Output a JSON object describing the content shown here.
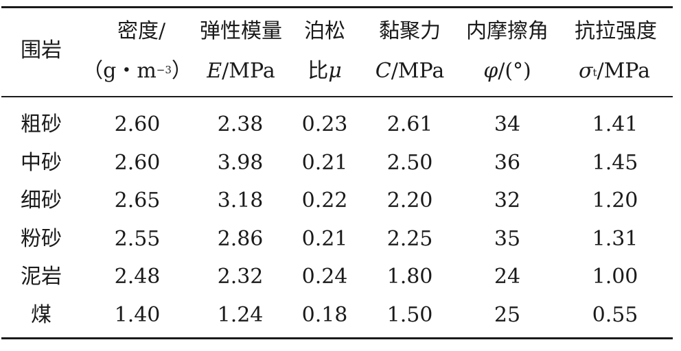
{
  "table": {
    "headers": [
      {
        "key": "rock",
        "line1": "围岩"
      },
      {
        "key": "density",
        "line1": "密度/",
        "line2_pre": "（g・m",
        "line2_sup": "−3",
        "line2_post": "）"
      },
      {
        "key": "elastic",
        "line1": "弹性模量",
        "line2_italic": "E",
        "line2_rest": "/MPa"
      },
      {
        "key": "poisson",
        "line1": "泊松",
        "line2_plain": "比",
        "line2_italic": "μ"
      },
      {
        "key": "cohesion",
        "line1": "黏聚力",
        "line2_italic": "C",
        "line2_rest": "/MPa"
      },
      {
        "key": "friction",
        "line1": "内摩擦角",
        "line2_italic": "φ",
        "line2_rest": "/(°)"
      },
      {
        "key": "tensile",
        "line1": "抗拉强度",
        "line2_italic": "σ",
        "line2_sub": "t",
        "line2_rest": "/MPa"
      }
    ],
    "rows": [
      [
        "粗砂",
        "2.60",
        "2.38",
        "0.23",
        "2.61",
        "34",
        "1.41"
      ],
      [
        "中砂",
        "2.60",
        "3.98",
        "0.21",
        "2.50",
        "36",
        "1.45"
      ],
      [
        "细砂",
        "2.65",
        "3.18",
        "0.22",
        "2.20",
        "32",
        "1.20"
      ],
      [
        "粉砂",
        "2.55",
        "2.86",
        "0.21",
        "2.25",
        "35",
        "1.31"
      ],
      [
        "泥岩",
        "2.48",
        "2.32",
        "0.24",
        "1.80",
        "24",
        "1.00"
      ],
      [
        "煤",
        "1.40",
        "1.24",
        "0.18",
        "1.50",
        "25",
        "0.55"
      ]
    ]
  }
}
